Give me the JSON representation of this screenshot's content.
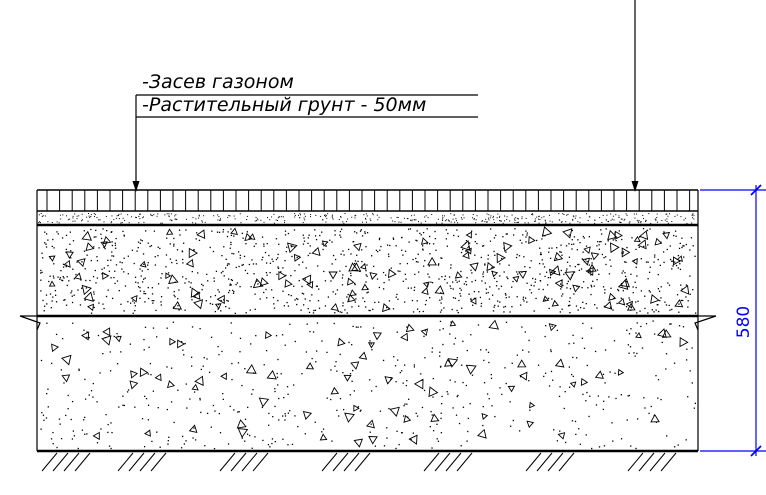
{
  "labels": {
    "line1": "-Засев газоном",
    "line2": "-Растительный грунт - 50мм"
  },
  "dimension": {
    "value": "580",
    "color": "#0000ff"
  },
  "layers": [
    {
      "name": "lawn-seeding",
      "hatch": "vertical-lines"
    },
    {
      "name": "topsoil",
      "hatch": "fine-dots"
    },
    {
      "name": "gravel-layer",
      "hatch": "dots-triangles"
    },
    {
      "name": "base-layer",
      "hatch": "sparse-dots-triangles"
    },
    {
      "name": "ground",
      "hatch": "diagonal-earth"
    }
  ],
  "line_color": "#000000"
}
